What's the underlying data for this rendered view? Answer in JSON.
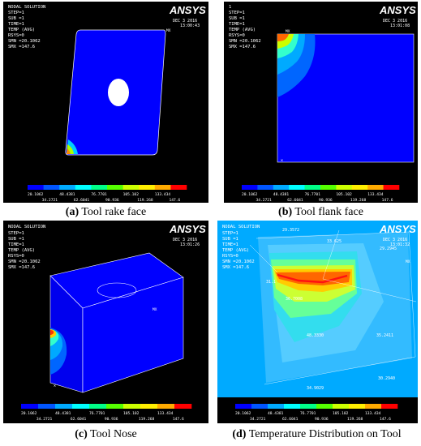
{
  "panels": [
    {
      "id": "a",
      "caption_letter": "(a)",
      "caption_text": "Tool rake face",
      "info_lines": [
        "NODAL SOLUTION",
        "STEP=1",
        "SUB =1",
        "TIME=1",
        "TEMP     (AVG)",
        "RSYS=0",
        "SMN =20.1062",
        "SMX =147.6"
      ],
      "date_line": "DEC  3 2016",
      "time_line": "13:00:43",
      "mx_label": "MX"
    },
    {
      "id": "b",
      "caption_letter": "(b)",
      "caption_text": "Tool flank face",
      "info_lines": [
        "1",
        "STEP=1",
        "SUB =1",
        "TIME=1",
        "TEMP     (AVG)",
        "RSYS=0",
        "SMN =20.1062",
        "SMX =147.6"
      ],
      "date_line": "DEC  3 2016",
      "time_line": "13:01:08",
      "mx_label": "MX"
    },
    {
      "id": "c",
      "caption_letter": "(c)",
      "caption_text": "Tool Nose",
      "info_lines": [
        "NODAL SOLUTION",
        "STEP=1",
        "SUB =1",
        "TIME=1",
        "TEMP     (AVG)",
        "RSYS=0",
        "SMN =20.1062",
        "SMX =147.6"
      ],
      "date_line": "DEC  3 2016",
      "time_line": "13:01:26",
      "mx_label": "MX"
    },
    {
      "id": "d",
      "caption_letter": "(d)",
      "caption_text": "Temperature Distribution on Tool",
      "info_lines": [
        "NODAL SOLUTION",
        "STEP=1",
        "SUB =1",
        "TIME=1",
        "TEMP     (AVG)",
        "RSYS=0",
        "SMN =20.1062",
        "SMX =147.6"
      ],
      "date_line": "DEC  3 2016",
      "time_line": "13:01:32",
      "mx_label": "MX",
      "node_labels": [
        "29.3572",
        "33.625",
        "29.2945",
        "31.1",
        "36.7008",
        "48.3330",
        "35.2411",
        "30.2940",
        "34.9029"
      ]
    }
  ],
  "brand": "ANSYS",
  "legend_top": [
    "20.1062",
    "48.4381",
    "76.7701",
    "105.102",
    "133.434"
  ],
  "legend_bottom": [
    "34.2721",
    "62.6041",
    "90.936",
    "119.268",
    "147.6"
  ],
  "legend_colors": [
    "#0000ff",
    "#0055ff",
    "#00aaff",
    "#00ffff",
    "#00ff88",
    "#55ff00",
    "#ccff00",
    "#ffee00",
    "#ffaa00",
    "#ff0000"
  ]
}
